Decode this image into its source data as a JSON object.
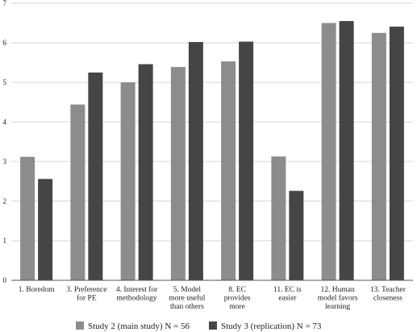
{
  "chart_data": {
    "type": "bar",
    "title": "",
    "xlabel": "",
    "ylabel": "",
    "ylim": [
      0,
      7
    ],
    "yticks": [
      0,
      1,
      2,
      3,
      4,
      5,
      6,
      7
    ],
    "grid": true,
    "legend_position": "bottom",
    "categories": [
      [
        "1. Boredom"
      ],
      [
        "3. Preference",
        "for PE"
      ],
      [
        "4. Interest for",
        "methodology"
      ],
      [
        "5. Model",
        "more useful",
        "than others"
      ],
      [
        "8. EC",
        "provides",
        "more"
      ],
      [
        "11. EC is",
        "easier"
      ],
      [
        "12. Human",
        "model favors",
        "learning"
      ],
      [
        "13. Teacher",
        "closeness"
      ]
    ],
    "series": [
      {
        "name": "Study 2 (main study) N = 56",
        "color": "#8c8c8c",
        "values": [
          3.12,
          4.44,
          5.0,
          5.39,
          5.53,
          3.13,
          6.5,
          6.25
        ]
      },
      {
        "name": "Study 3 (replication) N = 73",
        "color": "#454545",
        "values": [
          2.56,
          5.25,
          5.46,
          6.02,
          6.03,
          2.26,
          6.55,
          6.41
        ]
      }
    ]
  }
}
